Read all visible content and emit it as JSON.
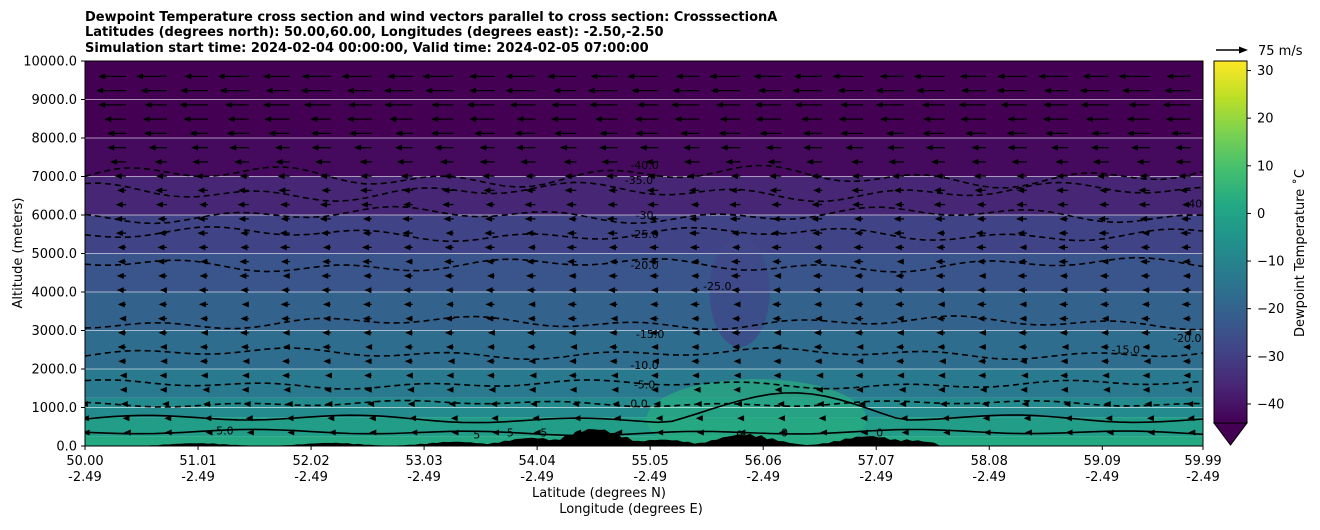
{
  "chart_data": {
    "type": "heatmap",
    "title_lines": [
      "Dewpoint Temperature cross section and wind vectors parallel to cross section: CrosssectionA",
      "Latitudes (degrees north): 50.00,60.00, Longitudes (degrees east): -2.50,-2.50",
      "Simulation start time: 2024-02-04 00:00:00, Valid time: 2024-02-05 07:00:00"
    ],
    "xlabel_lines": [
      "Latitude (degrees N)",
      "Longitude (degrees E)"
    ],
    "ylabel": "Altitude (meters)",
    "x_ticks": [
      {
        "lat": "50.00",
        "lon": "-2.49"
      },
      {
        "lat": "51.01",
        "lon": "-2.49"
      },
      {
        "lat": "52.02",
        "lon": "-2.49"
      },
      {
        "lat": "53.03",
        "lon": "-2.49"
      },
      {
        "lat": "54.04",
        "lon": "-2.49"
      },
      {
        "lat": "55.05",
        "lon": "-2.49"
      },
      {
        "lat": "56.06",
        "lon": "-2.49"
      },
      {
        "lat": "57.07",
        "lon": "-2.49"
      },
      {
        "lat": "58.08",
        "lon": "-2.49"
      },
      {
        "lat": "59.09",
        "lon": "-2.49"
      },
      {
        "lat": "59.99",
        "lon": "-2.49"
      }
    ],
    "xlim": [
      50.0,
      59.99
    ],
    "y_ticks": [
      "0.0",
      "1000.0",
      "2000.0",
      "3000.0",
      "4000.0",
      "5000.0",
      "6000.0",
      "7000.0",
      "8000.0",
      "9000.0",
      "10000.0"
    ],
    "ylim": [
      0,
      10000
    ],
    "grid": "horizontal",
    "colorbar": {
      "label": "Dewpoint Temperature ˚C",
      "min": -44,
      "max": 32,
      "ticks": [
        "30",
        "20",
        "10",
        "0",
        "−10",
        "−20",
        "−30",
        "−40"
      ],
      "tick_values": [
        30,
        20,
        10,
        0,
        -10,
        -20,
        -30,
        -40
      ],
      "extend": "min",
      "colormap": "viridis"
    },
    "quiver_key": {
      "label": "75 m/s"
    },
    "dewpoint_layers_c": [
      {
        "altitude_m": 250,
        "value": 2
      },
      {
        "altitude_m": 750,
        "value": -2
      },
      {
        "altitude_m": 1250,
        "value": -8
      },
      {
        "altitude_m": 2000,
        "value": -13
      },
      {
        "altitude_m": 3000,
        "value": -17
      },
      {
        "altitude_m": 4000,
        "value": -20
      },
      {
        "altitude_m": 5000,
        "value": -24
      },
      {
        "altitude_m": 6000,
        "value": -29
      },
      {
        "altitude_m": 7000,
        "value": -36
      },
      {
        "altitude_m": 8000,
        "value": -42
      },
      {
        "altitude_m": 10000,
        "value": -45
      }
    ],
    "contour_labels": [
      {
        "text": "-40.0",
        "lat": 55.0,
        "alt": 7200
      },
      {
        "text": "-35.0",
        "lat": 54.95,
        "alt": 6800
      },
      {
        "text": "-30",
        "lat": 55.0,
        "alt": 5900
      },
      {
        "text": "-25.0",
        "lat": 55.0,
        "alt": 5400
      },
      {
        "text": "-20.0",
        "lat": 55.0,
        "alt": 4600
      },
      {
        "text": "-25.0",
        "lat": 55.65,
        "alt": 4050
      },
      {
        "text": "-15.0",
        "lat": 55.05,
        "alt": 2800
      },
      {
        "text": "-10.0",
        "lat": 55.0,
        "alt": 2000
      },
      {
        "text": "-5.0",
        "lat": 55.0,
        "alt": 1500
      },
      {
        "text": "0.0",
        "lat": 54.95,
        "alt": 1000
      },
      {
        "text": "-15.0",
        "lat": 59.3,
        "alt": 2400
      },
      {
        "text": "-20.0",
        "lat": 59.85,
        "alt": 2700
      },
      {
        "text": "-40.0",
        "lat": 59.95,
        "alt": 6200
      },
      {
        "text": "5.0",
        "lat": 51.25,
        "alt": 300
      },
      {
        "text": "5",
        "lat": 53.5,
        "alt": 200
      },
      {
        "text": "5",
        "lat": 53.8,
        "alt": 250
      },
      {
        "text": "5",
        "lat": 54.1,
        "alt": 250
      },
      {
        "text": "0",
        "lat": 55.85,
        "alt": 200
      },
      {
        "text": "0",
        "lat": 56.25,
        "alt": 250
      },
      {
        "text": "0",
        "lat": 57.1,
        "alt": 250
      }
    ],
    "terrain_peak_m": [
      {
        "lat": 51.0,
        "alt": 80
      },
      {
        "lat": 52.2,
        "alt": 90
      },
      {
        "lat": 53.3,
        "alt": 120
      },
      {
        "lat": 54.0,
        "alt": 230
      },
      {
        "lat": 54.55,
        "alt": 480
      },
      {
        "lat": 55.15,
        "alt": 180
      },
      {
        "lat": 55.9,
        "alt": 330
      },
      {
        "lat": 57.0,
        "alt": 280
      },
      {
        "lat": 57.3,
        "alt": 180
      }
    ],
    "wind_u_ms_by_altitude": [
      {
        "altitude_m": 500,
        "u": -5
      },
      {
        "altitude_m": 1500,
        "u": -15
      },
      {
        "altitude_m": 3000,
        "u": -18
      },
      {
        "altitude_m": 5000,
        "u": -20
      },
      {
        "altitude_m": 7000,
        "u": -25
      },
      {
        "altitude_m": 8000,
        "u": -45
      },
      {
        "altitude_m": 9000,
        "u": -60
      },
      {
        "altitude_m": 9800,
        "u": -65
      }
    ]
  }
}
